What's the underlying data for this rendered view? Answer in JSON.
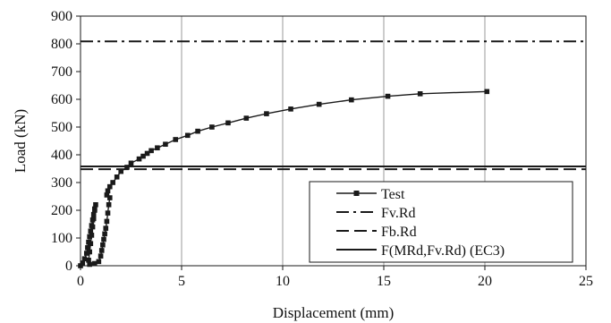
{
  "chart_data": {
    "type": "line",
    "xlabel": "Displacement (mm)",
    "ylabel": "Load (kN)",
    "xlim": [
      0,
      25
    ],
    "ylim": [
      0,
      900
    ],
    "xticks": [
      0,
      5,
      10,
      15,
      20,
      25
    ],
    "yticks": [
      0,
      100,
      200,
      300,
      400,
      500,
      600,
      700,
      800,
      900
    ],
    "grid": "vertical",
    "legend_position": "bottom-right",
    "series": [
      {
        "name": "Test",
        "style": "solid-square-markers",
        "points": [
          [
            0.0,
            0
          ],
          [
            0.1,
            10
          ],
          [
            0.2,
            25
          ],
          [
            0.3,
            45
          ],
          [
            0.35,
            65
          ],
          [
            0.4,
            85
          ],
          [
            0.45,
            105
          ],
          [
            0.5,
            125
          ],
          [
            0.55,
            145
          ],
          [
            0.6,
            165
          ],
          [
            0.65,
            185
          ],
          [
            0.7,
            205
          ],
          [
            0.75,
            220
          ],
          [
            0.7,
            200
          ],
          [
            0.65,
            170
          ],
          [
            0.6,
            140
          ],
          [
            0.55,
            110
          ],
          [
            0.5,
            80
          ],
          [
            0.45,
            50
          ],
          [
            0.4,
            20
          ],
          [
            0.45,
            5
          ],
          [
            0.7,
            8
          ],
          [
            0.9,
            15
          ],
          [
            1.0,
            35
          ],
          [
            1.05,
            55
          ],
          [
            1.1,
            75
          ],
          [
            1.15,
            95
          ],
          [
            1.2,
            115
          ],
          [
            1.25,
            135
          ],
          [
            1.3,
            160
          ],
          [
            1.35,
            190
          ],
          [
            1.4,
            220
          ],
          [
            1.45,
            245
          ],
          [
            1.3,
            255
          ],
          [
            1.35,
            270
          ],
          [
            1.45,
            285
          ],
          [
            1.6,
            300
          ],
          [
            1.8,
            320
          ],
          [
            2.0,
            340
          ],
          [
            2.3,
            355
          ],
          [
            2.5,
            370
          ],
          [
            2.9,
            385
          ],
          [
            3.1,
            395
          ],
          [
            3.3,
            405
          ],
          [
            3.5,
            415
          ],
          [
            3.8,
            425
          ],
          [
            4.2,
            438
          ],
          [
            4.7,
            455
          ],
          [
            5.3,
            470
          ],
          [
            5.8,
            485
          ],
          [
            6.5,
            500
          ],
          [
            7.3,
            515
          ],
          [
            8.2,
            532
          ],
          [
            9.2,
            548
          ],
          [
            10.4,
            565
          ],
          [
            11.8,
            582
          ],
          [
            13.4,
            598
          ],
          [
            15.2,
            611
          ],
          [
            16.8,
            620
          ],
          [
            20.1,
            628
          ]
        ]
      },
      {
        "name": "Fv.Rd",
        "style": "dash-dot",
        "y": 809
      },
      {
        "name": "Fb.Rd",
        "style": "dashed",
        "y": 348
      },
      {
        "name": "F(MRd,Fv.Rd) (EC3)",
        "style": "solid",
        "y": 358
      }
    ]
  },
  "colors": {
    "line": "#1a1a1a",
    "grid": "#9a9a9a",
    "background": "#ffffff"
  }
}
